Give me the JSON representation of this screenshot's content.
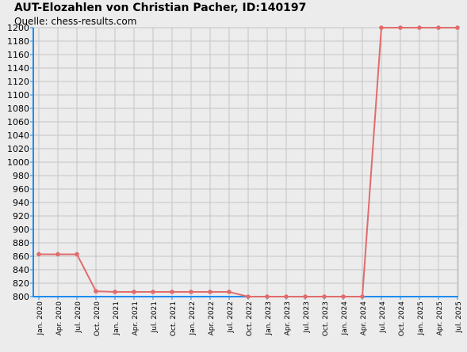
{
  "chart_data": {
    "type": "line",
    "title": "AUT-Elozahlen von Christian Pacher, ID:140197",
    "subtitle": "Quelle: chess-results.com",
    "xlabel": "",
    "ylabel": "",
    "ylim": [
      800,
      1200
    ],
    "ytick_step": 20,
    "grid": true,
    "legend": "none",
    "colors": {
      "background": "#ececec",
      "grid": "#c4c4c4",
      "axis": "#1e8cf0",
      "series": "#e06c6c",
      "text": "#000000"
    },
    "categories": [
      "Jan. 2020",
      "Apr. 2020",
      "Jul. 2020",
      "Oct. 2020",
      "Jan. 2021",
      "Apr. 2021",
      "Jul. 2021",
      "Oct. 2021",
      "Jan. 2022",
      "Apr. 2022",
      "Jul. 2022",
      "Oct. 2022",
      "Jan. 2023",
      "Apr. 2023",
      "Jul. 2023",
      "Oct. 2023",
      "Jan. 2024",
      "Apr. 2024",
      "Jul. 2024",
      "Oct. 2024",
      "Jan. 2025",
      "Apr. 2025",
      "Jul. 2025"
    ],
    "series": [
      {
        "values": [
          863,
          863,
          863,
          808,
          807,
          807,
          807,
          807,
          807,
          807,
          807,
          800,
          800,
          800,
          800,
          800,
          800,
          800,
          1200,
          1200,
          1200,
          1200,
          1200
        ]
      }
    ]
  }
}
